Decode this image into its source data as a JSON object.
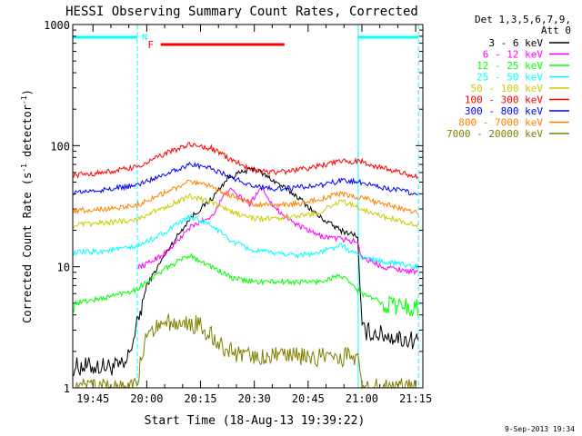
{
  "chart_data": {
    "type": "line",
    "title": "HESSI Observing Summary Count Rates, Corrected",
    "xlabel": "Start Time (18-Aug-13 19:39:22)",
    "ylabel_main": "Corrected Count Rate (s",
    "ylabel_sup1": "-1",
    "ylabel_mid": " detector",
    "ylabel_sup2": "-1",
    "ylabel_end": ")",
    "y_scale": "log",
    "xlim": [
      19.6561,
      21.2833
    ],
    "ylim": [
      1,
      1000
    ],
    "x_ticks": [
      {
        "t": 19.75,
        "label": "19:45"
      },
      {
        "t": 20.0,
        "label": "20:00"
      },
      {
        "t": 20.25,
        "label": "20:15"
      },
      {
        "t": 20.5,
        "label": "20:30"
      },
      {
        "t": 20.75,
        "label": "20:45"
      },
      {
        "t": 21.0,
        "label": "21:00"
      },
      {
        "t": 21.25,
        "label": "21:15"
      }
    ],
    "y_ticks": [
      {
        "v": 1,
        "label": "1"
      },
      {
        "v": 10,
        "label": "10"
      },
      {
        "v": 100,
        "label": "100"
      },
      {
        "v": 1000,
        "label": "1000"
      }
    ],
    "legend_header": [
      "Det 1,3,5,6,7,9,",
      "Att 0"
    ],
    "legend_position": "top-right, outside plot",
    "footer_date": "9-Sep-2013 19:34",
    "night_intervals": [
      [
        19.6561,
        19.956
      ],
      [
        20.983,
        21.263
      ]
    ],
    "night_label": "N",
    "flare_label": "F",
    "flare_interval": [
      20.065,
      20.64
    ],
    "series": [
      {
        "name": "3 - 6 keV",
        "color": "#000000",
        "points": [
          [
            19.66,
            1.5
          ],
          [
            19.9,
            1.5
          ],
          [
            19.95,
            3
          ],
          [
            20.0,
            7
          ],
          [
            20.1,
            14
          ],
          [
            20.2,
            25
          ],
          [
            20.3,
            36
          ],
          [
            20.38,
            55
          ],
          [
            20.5,
            65
          ],
          [
            20.6,
            50
          ],
          [
            20.7,
            38
          ],
          [
            20.8,
            26
          ],
          [
            20.9,
            20
          ],
          [
            20.98,
            18
          ],
          [
            21.0,
            3
          ],
          [
            21.2,
            2.5
          ],
          [
            21.26,
            2.5
          ]
        ]
      },
      {
        "name": "6 - 12 keV",
        "color": "#ff00ff",
        "points": [
          [
            19.96,
            10
          ],
          [
            20.0,
            10.5
          ],
          [
            20.1,
            13.5
          ],
          [
            20.2,
            21
          ],
          [
            20.3,
            26
          ],
          [
            20.38,
            44
          ],
          [
            20.48,
            33
          ],
          [
            20.53,
            46
          ],
          [
            20.6,
            30
          ],
          [
            20.7,
            22
          ],
          [
            20.8,
            18
          ],
          [
            20.9,
            17
          ],
          [
            20.98,
            16
          ],
          [
            21.0,
            12
          ],
          [
            21.1,
            10
          ],
          [
            21.26,
            9
          ]
        ]
      },
      {
        "name": "12 - 25 keV",
        "color": "#00ff00",
        "points": [
          [
            19.66,
            5
          ],
          [
            19.8,
            5.5
          ],
          [
            19.95,
            6.5
          ],
          [
            20.1,
            10
          ],
          [
            20.2,
            12.5
          ],
          [
            20.3,
            10
          ],
          [
            20.4,
            8
          ],
          [
            20.5,
            7.5
          ],
          [
            20.6,
            7.5
          ],
          [
            20.7,
            7.5
          ],
          [
            20.8,
            7.5
          ],
          [
            20.9,
            8.5
          ],
          [
            21.0,
            6
          ],
          [
            21.1,
            5
          ],
          [
            21.26,
            4.5
          ]
        ]
      },
      {
        "name": "25 - 50 keV",
        "color": "#00ffff",
        "points": [
          [
            19.66,
            13
          ],
          [
            19.8,
            13.5
          ],
          [
            19.95,
            14.5
          ],
          [
            20.1,
            20
          ],
          [
            20.2,
            26
          ],
          [
            20.3,
            22
          ],
          [
            20.4,
            16
          ],
          [
            20.5,
            13.5
          ],
          [
            20.6,
            13
          ],
          [
            20.7,
            12.5
          ],
          [
            20.8,
            13
          ],
          [
            20.9,
            15
          ],
          [
            21.0,
            12
          ],
          [
            21.1,
            11
          ],
          [
            21.26,
            10
          ]
        ]
      },
      {
        "name": "50 - 100 keV",
        "color": "#cccc00",
        "points": [
          [
            19.66,
            22
          ],
          [
            19.8,
            23
          ],
          [
            19.95,
            24.5
          ],
          [
            20.1,
            32
          ],
          [
            20.2,
            38
          ],
          [
            20.3,
            34
          ],
          [
            20.4,
            28
          ],
          [
            20.5,
            25
          ],
          [
            20.6,
            25
          ],
          [
            20.7,
            26
          ],
          [
            20.8,
            28
          ],
          [
            20.9,
            35
          ],
          [
            21.0,
            30
          ],
          [
            21.1,
            26
          ],
          [
            21.26,
            22
          ]
        ]
      },
      {
        "name": "100 - 300 keV",
        "color": "#ff0000",
        "points": [
          [
            19.66,
            57
          ],
          [
            19.8,
            60
          ],
          [
            19.95,
            66
          ],
          [
            20.1,
            88
          ],
          [
            20.2,
            102
          ],
          [
            20.3,
            95
          ],
          [
            20.4,
            75
          ],
          [
            20.5,
            63
          ],
          [
            20.6,
            60
          ],
          [
            20.7,
            63
          ],
          [
            20.8,
            68
          ],
          [
            20.9,
            74
          ],
          [
            21.0,
            74
          ],
          [
            21.1,
            65
          ],
          [
            21.26,
            55
          ]
        ]
      },
      {
        "name": "300 - 800 keV",
        "color": "#0000ff",
        "points": [
          [
            19.66,
            41
          ],
          [
            19.8,
            43
          ],
          [
            19.95,
            47
          ],
          [
            20.1,
            60
          ],
          [
            20.2,
            70
          ],
          [
            20.3,
            65
          ],
          [
            20.4,
            54
          ],
          [
            20.5,
            46
          ],
          [
            20.6,
            44
          ],
          [
            20.7,
            45
          ],
          [
            20.8,
            47
          ],
          [
            20.9,
            51
          ],
          [
            21.0,
            50
          ],
          [
            21.1,
            45
          ],
          [
            21.26,
            40
          ]
        ]
      },
      {
        "name": "800 - 7000 keV",
        "color": "#ff8000",
        "points": [
          [
            19.66,
            29
          ],
          [
            19.8,
            30
          ],
          [
            19.95,
            32
          ],
          [
            20.1,
            42
          ],
          [
            20.2,
            50
          ],
          [
            20.3,
            46
          ],
          [
            20.4,
            38
          ],
          [
            20.5,
            33
          ],
          [
            20.6,
            32
          ],
          [
            20.7,
            33
          ],
          [
            20.8,
            36
          ],
          [
            20.9,
            40
          ],
          [
            21.0,
            37
          ],
          [
            21.1,
            33
          ],
          [
            21.26,
            28
          ]
        ]
      },
      {
        "name": "7000 - 20000 keV",
        "color": "#808000",
        "points": [
          [
            19.66,
            1
          ],
          [
            19.95,
            1
          ],
          [
            20.0,
            3
          ],
          [
            20.12,
            3.5
          ],
          [
            20.25,
            3.3
          ],
          [
            20.35,
            2.2
          ],
          [
            20.45,
            1.8
          ],
          [
            20.6,
            1.8
          ],
          [
            20.8,
            1.8
          ],
          [
            20.98,
            1.8
          ],
          [
            21.0,
            1
          ],
          [
            21.26,
            1
          ]
        ]
      }
    ]
  }
}
